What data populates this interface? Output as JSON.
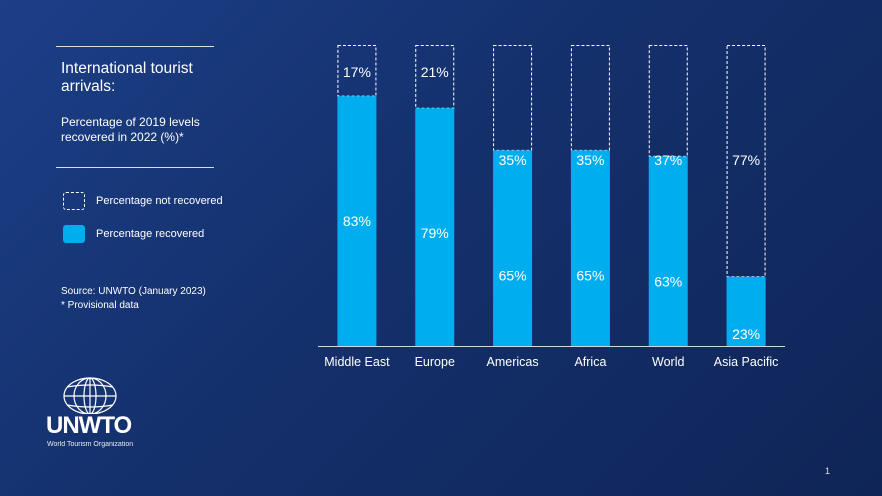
{
  "panel": {
    "title": "International tourist arrivals:",
    "subtitle": "Percentage of 2019 levels recovered in 2022 (%)*",
    "source": "Source: UNWTO (January 2023)",
    "note": "* Provisional data"
  },
  "legend": {
    "not_recovered": "Percentage not recovered",
    "recovered": "Percentage recovered"
  },
  "logo": {
    "name": "UNWTO",
    "tagline": "World Tourism Organization"
  },
  "page_number": "1",
  "colors": {
    "recovered": "#00aeef",
    "not_recovered_border": "#ffffff",
    "background": "#14306c"
  },
  "chart_data": {
    "type": "bar",
    "stacked": true,
    "categories": [
      "Middle East",
      "Europe",
      "Americas",
      "Africa",
      "World",
      "Asia Pacific"
    ],
    "series": [
      {
        "name": "Percentage recovered",
        "values": [
          83,
          79,
          65,
          65,
          63,
          23
        ],
        "labels": [
          "83%",
          "79%",
          "65%",
          "65%",
          "63%",
          "23%"
        ]
      },
      {
        "name": "Percentage not recovered",
        "values": [
          17,
          21,
          35,
          35,
          37,
          77
        ],
        "labels": [
          "17%",
          "21%",
          "35%",
          "35%",
          "37%",
          "77%"
        ]
      }
    ],
    "ylim": [
      0,
      100
    ],
    "grid": false
  }
}
